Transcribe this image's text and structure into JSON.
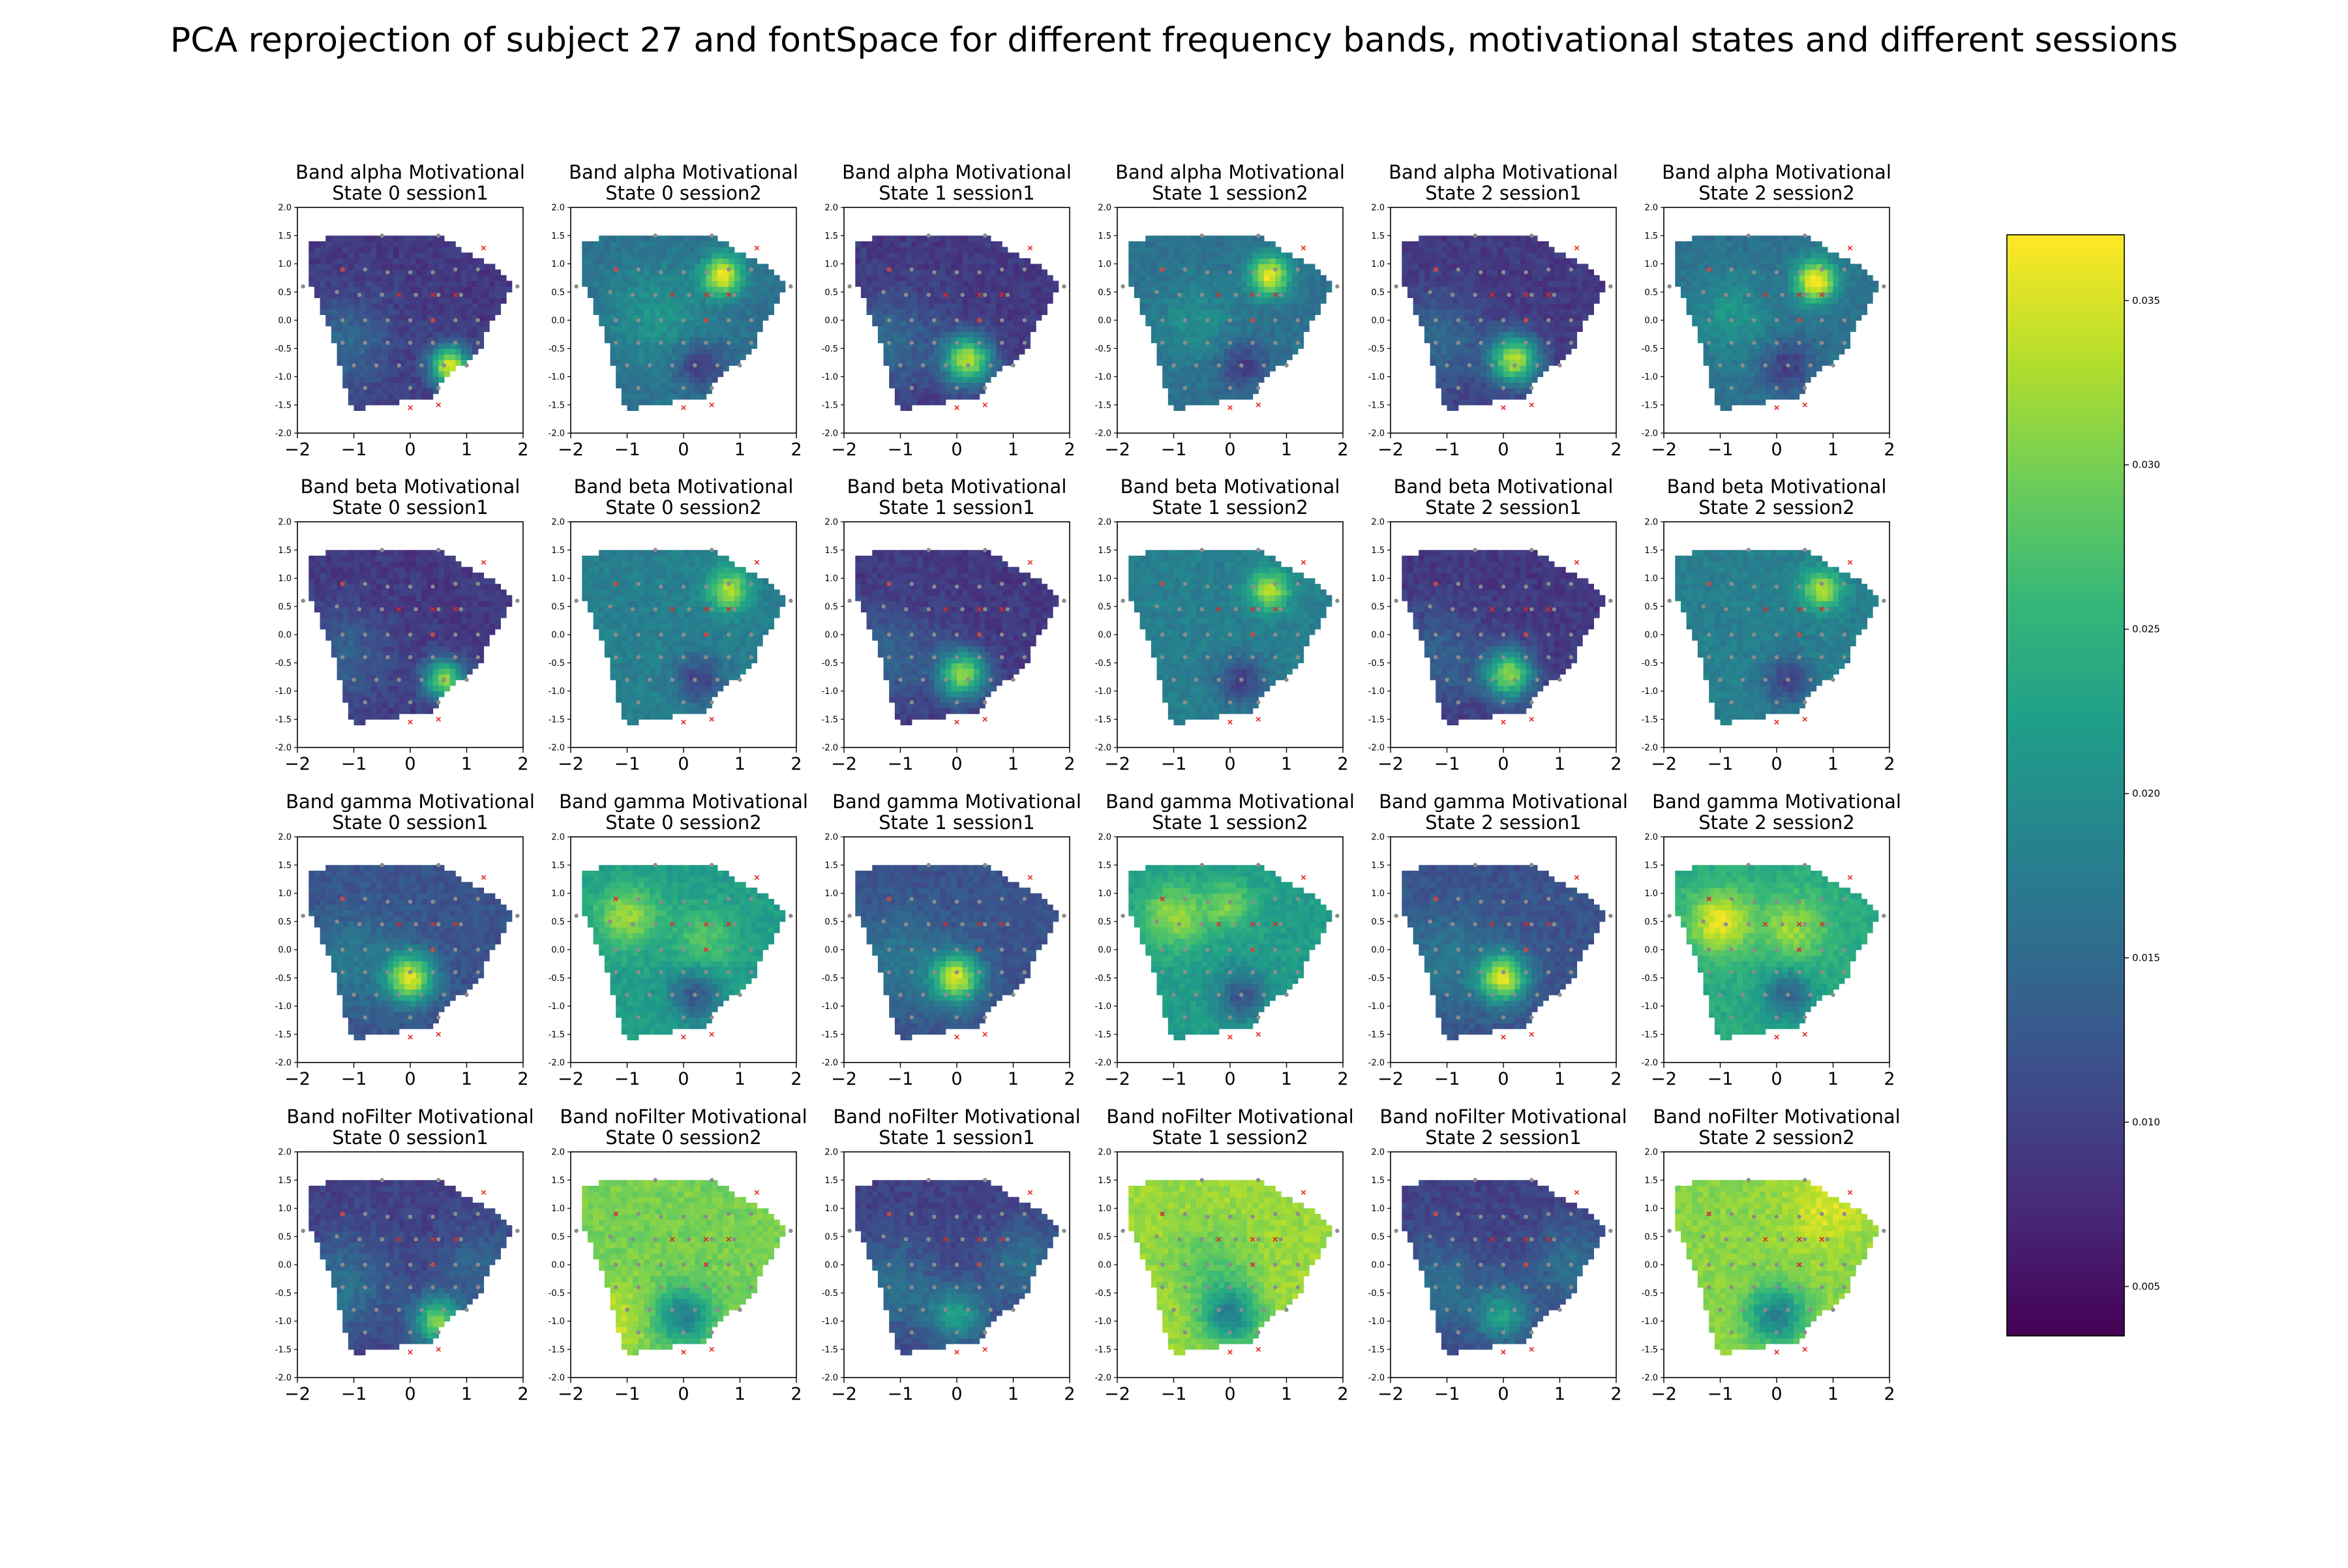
{
  "figure_title": "PCA reprojection of subject 27 and fontSpace for different frequency bands, motivational states and different sessions",
  "colormap": "viridis",
  "chart_data": {
    "type": "heatmap",
    "grid": {
      "rows": 4,
      "cols": 6
    },
    "bands": [
      "alpha",
      "beta",
      "gamma",
      "noFilter"
    ],
    "states": [
      "0",
      "1",
      "2"
    ],
    "sessions": [
      "session1",
      "session2"
    ],
    "panel_titles": [
      [
        "Band alpha Motivational",
        "State 0 session1"
      ],
      [
        "Band alpha Motivational",
        "State 0 session2"
      ],
      [
        "Band alpha Motivational",
        "State 1 session1"
      ],
      [
        "Band alpha Motivational",
        "State 1 session2"
      ],
      [
        "Band alpha Motivational",
        "State 2 session1"
      ],
      [
        "Band alpha Motivational",
        "State 2 session2"
      ],
      [
        "Band beta Motivational",
        "State 0 session1"
      ],
      [
        "Band beta Motivational",
        "State 0 session2"
      ],
      [
        "Band beta Motivational",
        "State 1 session1"
      ],
      [
        "Band beta Motivational",
        "State 1 session2"
      ],
      [
        "Band beta Motivational",
        "State 2 session1"
      ],
      [
        "Band beta Motivational",
        "State 2 session2"
      ],
      [
        "Band gamma Motivational",
        "State 0 session1"
      ],
      [
        "Band gamma Motivational",
        "State 0 session2"
      ],
      [
        "Band gamma Motivational",
        "State 1 session1"
      ],
      [
        "Band gamma Motivational",
        "State 1 session2"
      ],
      [
        "Band gamma Motivational",
        "State 2 session1"
      ],
      [
        "Band gamma Motivational",
        "State 2 session2"
      ],
      [
        "Band noFilter Motivational",
        "State 0 session1"
      ],
      [
        "Band noFilter Motivational",
        "State 0 session2"
      ],
      [
        "Band noFilter Motivational",
        "State 1 session1"
      ],
      [
        "Band noFilter Motivational",
        "State 1 session2"
      ],
      [
        "Band noFilter Motivational",
        "State 2 session1"
      ],
      [
        "Band noFilter Motivational",
        "State 2 session2"
      ]
    ],
    "xlim": [
      -2,
      2
    ],
    "ylim": [
      -2,
      2
    ],
    "xticks": [
      -2,
      -1,
      0,
      1,
      2
    ],
    "xtick_labels": [
      "−2",
      "−1",
      "0",
      "1",
      "2"
    ],
    "yticks": [
      -2.0,
      -1.5,
      -1.0,
      -0.5,
      0.0,
      0.5,
      1.0,
      1.5,
      2.0
    ],
    "ytick_labels": [
      "-2.0",
      "-1.5",
      "-1.0",
      "-0.5",
      "0.0",
      "0.5",
      "1.0",
      "1.5",
      "2.0"
    ],
    "colorbar": {
      "min": 0.0035,
      "max": 0.037,
      "ticks": [
        0.005,
        0.01,
        0.015,
        0.02,
        0.025,
        0.03,
        0.035
      ],
      "tick_labels": [
        "0.005",
        "0.010",
        "0.015",
        "0.020",
        "0.025",
        "0.030",
        "0.035"
      ]
    },
    "head_outline": [
      [
        -1.8,
        1.42
      ],
      [
        -0.45,
        1.55
      ],
      [
        0.5,
        1.5
      ],
      [
        1.4,
        1.0
      ],
      [
        1.75,
        0.7
      ],
      [
        1.8,
        0.55
      ],
      [
        1.4,
        -0.1
      ],
      [
        1.2,
        -0.6
      ],
      [
        0.6,
        -1.0
      ],
      [
        0.4,
        -1.35
      ],
      [
        -0.5,
        -1.5
      ],
      [
        -1.0,
        -1.6
      ],
      [
        -1.2,
        -1.05
      ],
      [
        -1.3,
        -0.5
      ],
      [
        -1.5,
        0.0
      ],
      [
        -1.75,
        0.6
      ]
    ],
    "electrodes_grey": [
      [
        -0.5,
        1.5
      ],
      [
        0.5,
        1.5
      ],
      [
        -1.9,
        0.6
      ],
      [
        1.9,
        0.6
      ],
      [
        -1.2,
        0.9
      ],
      [
        -0.8,
        0.9
      ],
      [
        -0.4,
        0.85
      ],
      [
        0.0,
        0.85
      ],
      [
        0.4,
        0.85
      ],
      [
        0.8,
        0.9
      ],
      [
        1.2,
        0.9
      ],
      [
        -1.3,
        0.5
      ],
      [
        -0.9,
        0.45
      ],
      [
        -0.5,
        0.45
      ],
      [
        0.1,
        0.45
      ],
      [
        0.5,
        0.45
      ],
      [
        0.9,
        0.45
      ],
      [
        -1.2,
        0.0
      ],
      [
        -0.8,
        0.0
      ],
      [
        -0.4,
        0.0
      ],
      [
        0.0,
        0.0
      ],
      [
        0.4,
        0.0
      ],
      [
        0.8,
        0.0
      ],
      [
        1.2,
        0.0
      ],
      [
        -1.2,
        -0.4
      ],
      [
        -0.8,
        -0.4
      ],
      [
        -0.4,
        -0.4
      ],
      [
        0.0,
        -0.4
      ],
      [
        0.4,
        -0.4
      ],
      [
        0.8,
        -0.4
      ],
      [
        1.2,
        -0.4
      ],
      [
        -1.0,
        -0.8
      ],
      [
        -0.6,
        -0.8
      ],
      [
        -0.2,
        -0.8
      ],
      [
        0.2,
        -0.8
      ],
      [
        0.6,
        -0.8
      ],
      [
        1.0,
        -0.8
      ],
      [
        -0.8,
        -1.2
      ],
      [
        0.0,
        -1.2
      ],
      [
        0.5,
        -1.2
      ]
    ],
    "electrodes_red": [
      [
        1.3,
        1.28
      ],
      [
        0.4,
        0.45
      ],
      [
        -0.2,
        0.45
      ],
      [
        0.4,
        0.0
      ],
      [
        0.0,
        -1.55
      ],
      [
        0.5,
        -1.5
      ],
      [
        -1.2,
        0.9
      ],
      [
        0.8,
        0.45
      ]
    ],
    "panels": [
      {
        "band": "alpha",
        "state": "0",
        "session": "session1",
        "base": 0.009,
        "spots": [
          [
            0.7,
            -0.8,
            0.25,
            0.026
          ],
          [
            -1.2,
            -0.4,
            0.6,
            0.006
          ]
        ]
      },
      {
        "band": "alpha",
        "state": "0",
        "session": "session2",
        "base": 0.016,
        "spots": [
          [
            0.7,
            0.8,
            0.25,
            0.02
          ],
          [
            -0.5,
            0.1,
            0.6,
            0.005
          ],
          [
            0.3,
            -0.8,
            0.3,
            -0.007
          ]
        ]
      },
      {
        "band": "alpha",
        "state": "1",
        "session": "session1",
        "base": 0.009,
        "spots": [
          [
            0.2,
            -0.7,
            0.3,
            0.024
          ],
          [
            -1.2,
            -0.4,
            0.6,
            0.006
          ]
        ]
      },
      {
        "band": "alpha",
        "state": "1",
        "session": "session2",
        "base": 0.016,
        "spots": [
          [
            0.7,
            0.8,
            0.25,
            0.02
          ],
          [
            -0.6,
            0.0,
            0.5,
            0.004
          ],
          [
            0.2,
            -0.8,
            0.3,
            -0.007
          ]
        ]
      },
      {
        "band": "alpha",
        "state": "2",
        "session": "session1",
        "base": 0.009,
        "spots": [
          [
            0.2,
            -0.7,
            0.3,
            0.024
          ],
          [
            -1.2,
            -0.4,
            0.6,
            0.006
          ]
        ]
      },
      {
        "band": "alpha",
        "state": "2",
        "session": "session2",
        "base": 0.016,
        "spots": [
          [
            0.7,
            0.7,
            0.25,
            0.022
          ],
          [
            -0.8,
            0.1,
            0.5,
            0.005
          ],
          [
            0.2,
            -0.8,
            0.3,
            -0.007
          ]
        ]
      },
      {
        "band": "beta",
        "state": "0",
        "session": "session1",
        "base": 0.009,
        "spots": [
          [
            0.6,
            -0.8,
            0.25,
            0.022
          ],
          [
            -1.2,
            -0.4,
            0.6,
            0.005
          ]
        ]
      },
      {
        "band": "beta",
        "state": "0",
        "session": "session2",
        "base": 0.018,
        "spots": [
          [
            0.8,
            0.8,
            0.25,
            0.015
          ],
          [
            0.3,
            -0.8,
            0.3,
            -0.008
          ]
        ]
      },
      {
        "band": "beta",
        "state": "1",
        "session": "session1",
        "base": 0.009,
        "spots": [
          [
            0.1,
            -0.7,
            0.3,
            0.022
          ],
          [
            -1.2,
            -0.4,
            0.6,
            0.005
          ]
        ]
      },
      {
        "band": "beta",
        "state": "1",
        "session": "session2",
        "base": 0.018,
        "spots": [
          [
            0.7,
            0.8,
            0.25,
            0.015
          ],
          [
            0.2,
            -0.8,
            0.3,
            -0.008
          ]
        ]
      },
      {
        "band": "beta",
        "state": "2",
        "session": "session1",
        "base": 0.009,
        "spots": [
          [
            0.1,
            -0.7,
            0.3,
            0.022
          ],
          [
            -1.2,
            -0.4,
            0.6,
            0.005
          ]
        ]
      },
      {
        "band": "beta",
        "state": "2",
        "session": "session2",
        "base": 0.018,
        "spots": [
          [
            0.8,
            0.8,
            0.25,
            0.015
          ],
          [
            0.2,
            -0.8,
            0.3,
            -0.008
          ]
        ]
      },
      {
        "band": "gamma",
        "state": "0",
        "session": "session1",
        "base": 0.012,
        "spots": [
          [
            0.0,
            -0.5,
            0.3,
            0.022
          ],
          [
            -1.0,
            -0.2,
            0.6,
            0.005
          ]
        ]
      },
      {
        "band": "gamma",
        "state": "0",
        "session": "session2",
        "base": 0.022,
        "spots": [
          [
            -1.0,
            0.6,
            0.4,
            0.01
          ],
          [
            0.4,
            0.2,
            0.4,
            0.006
          ],
          [
            0.2,
            -0.8,
            0.3,
            -0.01
          ]
        ]
      },
      {
        "band": "gamma",
        "state": "1",
        "session": "session1",
        "base": 0.012,
        "spots": [
          [
            0.0,
            -0.5,
            0.3,
            0.022
          ],
          [
            -1.0,
            -0.2,
            0.6,
            0.005
          ]
        ]
      },
      {
        "band": "gamma",
        "state": "1",
        "session": "session2",
        "base": 0.022,
        "spots": [
          [
            -1.0,
            0.6,
            0.4,
            0.01
          ],
          [
            0.0,
            0.8,
            0.3,
            0.008
          ],
          [
            0.2,
            -0.8,
            0.3,
            -0.01
          ]
        ]
      },
      {
        "band": "gamma",
        "state": "2",
        "session": "session1",
        "base": 0.012,
        "spots": [
          [
            0.0,
            -0.5,
            0.3,
            0.022
          ],
          [
            -1.0,
            -0.2,
            0.6,
            0.005
          ]
        ]
      },
      {
        "band": "gamma",
        "state": "2",
        "session": "session2",
        "base": 0.024,
        "spots": [
          [
            -1.0,
            0.5,
            0.4,
            0.012
          ],
          [
            0.3,
            0.4,
            0.4,
            0.008
          ],
          [
            0.2,
            -0.8,
            0.3,
            -0.01
          ]
        ]
      },
      {
        "band": "noFilter",
        "state": "0",
        "session": "session1",
        "base": 0.01,
        "spots": [
          [
            0.5,
            -1.0,
            0.3,
            0.02
          ],
          [
            -1.2,
            -0.4,
            0.6,
            0.006
          ],
          [
            1.2,
            0.0,
            0.5,
            0.004
          ]
        ]
      },
      {
        "band": "noFilter",
        "state": "0",
        "session": "session2",
        "base": 0.03,
        "spots": [
          [
            0.0,
            -0.9,
            0.35,
            -0.012
          ],
          [
            -1.2,
            -1.0,
            0.4,
            0.004
          ]
        ]
      },
      {
        "band": "noFilter",
        "state": "1",
        "session": "session1",
        "base": 0.01,
        "spots": [
          [
            0.0,
            -0.9,
            0.35,
            0.012
          ],
          [
            -1.2,
            -0.4,
            0.6,
            0.006
          ],
          [
            1.2,
            0.0,
            0.5,
            0.006
          ]
        ]
      },
      {
        "band": "noFilter",
        "state": "1",
        "session": "session2",
        "base": 0.032,
        "spots": [
          [
            0.0,
            -0.9,
            0.35,
            -0.014
          ],
          [
            -0.3,
            0.0,
            0.5,
            -0.004
          ]
        ]
      },
      {
        "band": "noFilter",
        "state": "2",
        "session": "session1",
        "base": 0.01,
        "spots": [
          [
            0.0,
            -0.9,
            0.35,
            0.012
          ],
          [
            -1.2,
            -0.4,
            0.6,
            0.006
          ],
          [
            1.2,
            0.0,
            0.5,
            0.006
          ]
        ]
      },
      {
        "band": "noFilter",
        "state": "2",
        "session": "session2",
        "base": 0.031,
        "spots": [
          [
            0.0,
            -0.9,
            0.35,
            -0.013
          ],
          [
            0.9,
            1.0,
            0.5,
            0.004
          ]
        ]
      }
    ]
  }
}
